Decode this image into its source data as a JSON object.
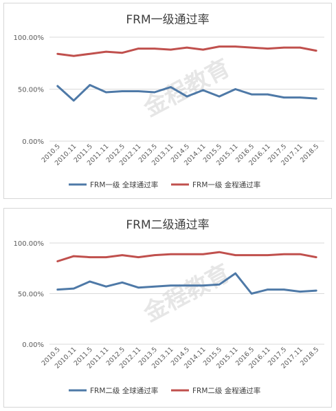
{
  "chart_data": [
    {
      "type": "line",
      "title": "FRM一级通过率",
      "watermark": "金程教育",
      "categories": [
        "2010.5",
        "2010.11",
        "2011.5",
        "2011.11",
        "2012.5",
        "2012.11",
        "2013.5",
        "2013.11",
        "2014.5",
        "2014.11",
        "2015.5",
        "2015.11",
        "2016.5",
        "2016.11",
        "2017.5",
        "2017.11",
        "2018.5"
      ],
      "yticks": [
        "100.00%",
        "50.00%",
        "0.00%"
      ],
      "ylim": [
        0,
        100
      ],
      "grid": true,
      "legend_position": "bottom",
      "series": [
        {
          "name": "FRM一级 全球通过率",
          "color": "#4e79a7",
          "values": [
            53,
            39,
            54,
            47,
            48,
            48,
            47,
            52,
            43,
            49,
            43,
            50,
            45,
            45,
            42,
            42,
            41
          ]
        },
        {
          "name": "FRM一级 金程通过率",
          "color": "#c0504d",
          "values": [
            84,
            82,
            84,
            86,
            85,
            89,
            89,
            88,
            90,
            88,
            91,
            91,
            90,
            89,
            90,
            90,
            87
          ]
        }
      ]
    },
    {
      "type": "line",
      "title": "FRM二级通过率",
      "watermark": "金程教育",
      "categories": [
        "2010.5",
        "2010.11",
        "2011.5",
        "2011.11",
        "2012.5",
        "2012.11",
        "2013.5",
        "2013.11",
        "2014.5",
        "2014.11",
        "2015.5",
        "2015.11",
        "2016.5",
        "2016.11",
        "2017.5",
        "2017.11",
        "2018.5"
      ],
      "yticks": [
        "100.00%",
        "50.00%",
        "0.00%"
      ],
      "ylim": [
        0,
        100
      ],
      "grid": true,
      "legend_position": "bottom",
      "series": [
        {
          "name": "FRM二级 全球通过率",
          "color": "#4e79a7",
          "values": [
            54,
            55,
            62,
            57,
            61,
            56,
            57,
            58,
            58,
            58,
            59,
            70,
            50,
            54,
            54,
            52,
            53
          ]
        },
        {
          "name": "FRM二级 金程通过率",
          "color": "#c0504d",
          "values": [
            82,
            87,
            86,
            86,
            88,
            86,
            88,
            89,
            89,
            89,
            91,
            88,
            88,
            88,
            89,
            89,
            86
          ]
        }
      ]
    }
  ]
}
